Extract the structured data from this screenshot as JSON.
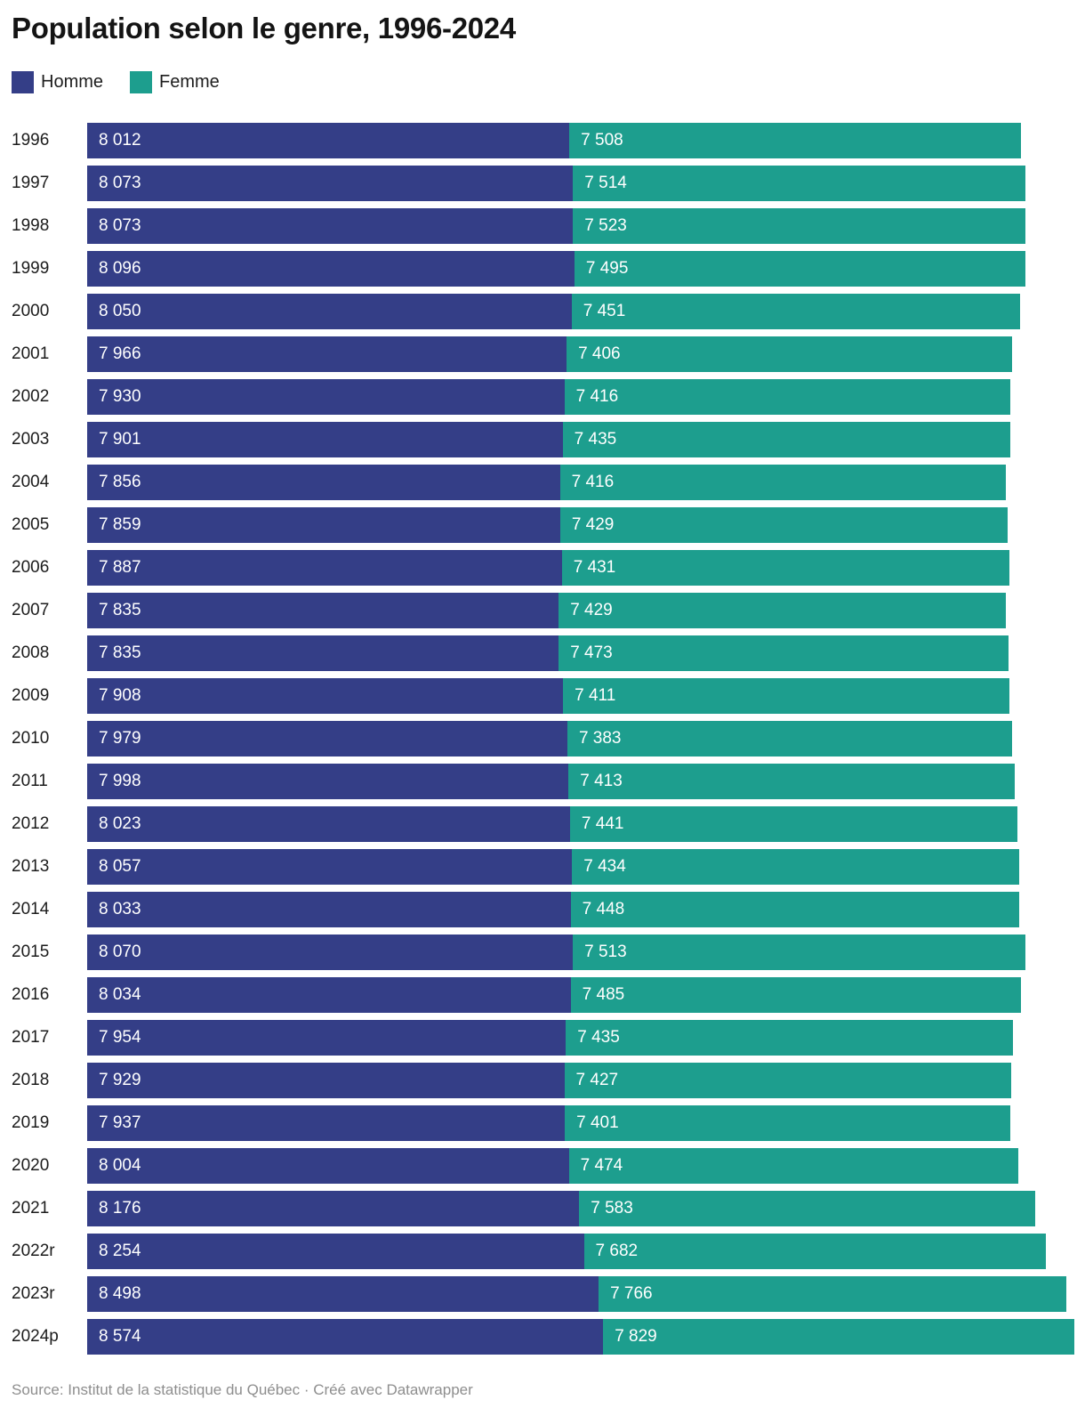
{
  "title": "Population selon le genre, 1996-2024",
  "legend": [
    {
      "label": "Homme",
      "color": "#343e87"
    },
    {
      "label": "Femme",
      "color": "#1d9e8e"
    }
  ],
  "footer": "Source: Institut de la statistique du Québec · Créé avec Datawrapper",
  "chart_data": {
    "type": "bar",
    "orientation": "horizontal",
    "stacked": true,
    "title": "Population selon le genre, 1996-2024",
    "legend_position": "top",
    "grid": false,
    "xmax": 16403,
    "value_format": "thousands separated by space, labels left-aligned inside segments",
    "categories": [
      "1996",
      "1997",
      "1998",
      "1999",
      "2000",
      "2001",
      "2002",
      "2003",
      "2004",
      "2005",
      "2006",
      "2007",
      "2008",
      "2009",
      "2010",
      "2011",
      "2012",
      "2013",
      "2014",
      "2015",
      "2016",
      "2017",
      "2018",
      "2019",
      "2020",
      "2021",
      "2022r",
      "2023r",
      "2024p"
    ],
    "series": [
      {
        "name": "Homme",
        "color": "#343e87",
        "values": [
          8012,
          8073,
          8073,
          8096,
          8050,
          7966,
          7930,
          7901,
          7856,
          7859,
          7887,
          7835,
          7835,
          7908,
          7979,
          7998,
          8023,
          8057,
          8033,
          8070,
          8034,
          7954,
          7929,
          7937,
          8004,
          8176,
          8254,
          8498,
          8574
        ]
      },
      {
        "name": "Femme",
        "color": "#1d9e8e",
        "values": [
          7508,
          7514,
          7523,
          7495,
          7451,
          7406,
          7416,
          7435,
          7416,
          7429,
          7431,
          7429,
          7473,
          7411,
          7383,
          7413,
          7441,
          7434,
          7448,
          7513,
          7485,
          7435,
          7427,
          7401,
          7474,
          7583,
          7682,
          7766,
          7829
        ]
      }
    ]
  }
}
